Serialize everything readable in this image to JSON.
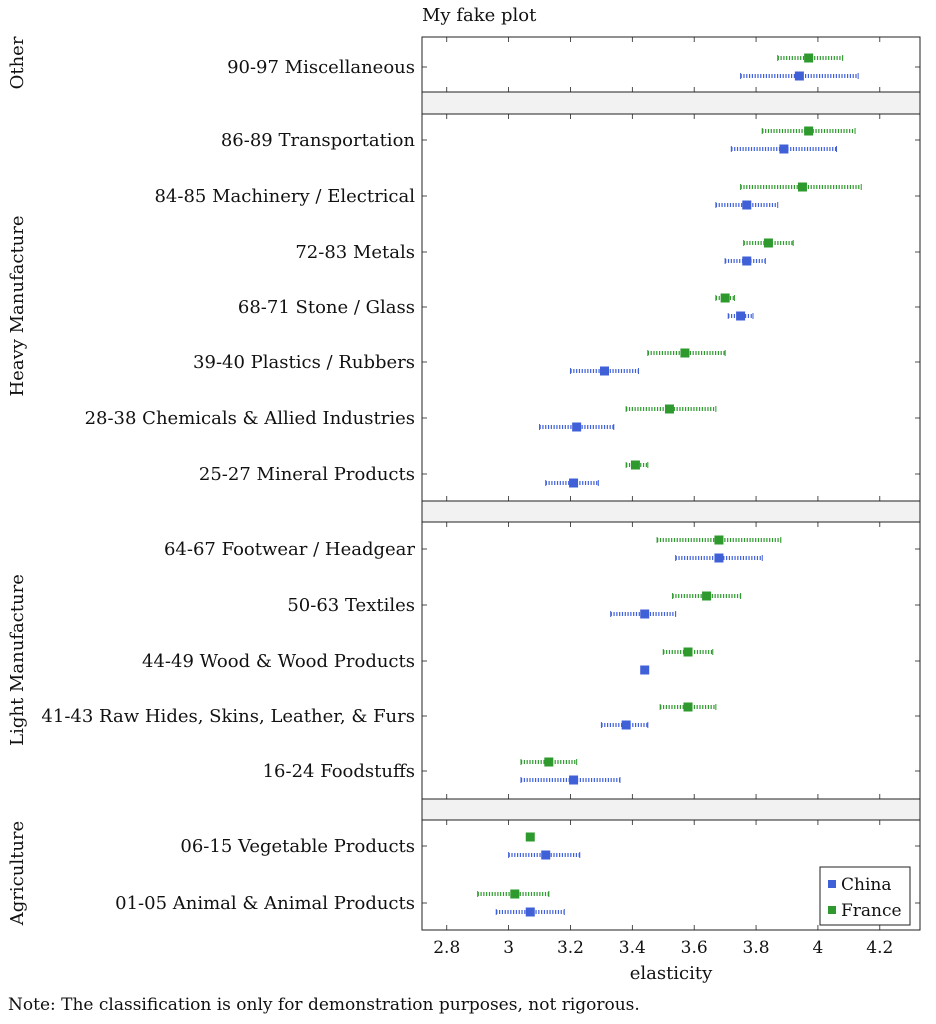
{
  "chart_data": {
    "type": "dot-range",
    "title": "My fake plot",
    "xlabel": "elasticity",
    "xlim": [
      2.72,
      4.33
    ],
    "xticks": [
      2.8,
      3.0,
      3.2,
      3.4,
      3.6,
      3.8,
      4.0,
      4.2
    ],
    "xtick_labels": [
      "2.8",
      "3",
      "3.2",
      "3.4",
      "3.6",
      "3.8",
      "4",
      "4.2"
    ],
    "colors": {
      "China": "#4060d8",
      "France": "#2e9a2e"
    },
    "legend": {
      "position": "bottom-right",
      "entries": [
        "China",
        "France"
      ]
    },
    "note": "Note: The classification is only for demonstration purposes, not rigorous.",
    "groups": [
      {
        "name": "Other",
        "items": [
          {
            "label": "90-97 Miscellaneous",
            "China": {
              "value": 3.94,
              "low": 3.75,
              "high": 4.13
            },
            "France": {
              "value": 3.97,
              "low": 3.87,
              "high": 4.08
            }
          }
        ]
      },
      {
        "name": "Heavy Manufacture",
        "items": [
          {
            "label": "86-89 Transportation",
            "China": {
              "value": 3.89,
              "low": 3.72,
              "high": 4.06
            },
            "France": {
              "value": 3.97,
              "low": 3.82,
              "high": 4.12
            }
          },
          {
            "label": "84-85 Machinery / Electrical",
            "China": {
              "value": 3.77,
              "low": 3.67,
              "high": 3.87
            },
            "France": {
              "value": 3.95,
              "low": 3.75,
              "high": 4.14
            }
          },
          {
            "label": "72-83 Metals",
            "China": {
              "value": 3.77,
              "low": 3.7,
              "high": 3.83
            },
            "France": {
              "value": 3.84,
              "low": 3.76,
              "high": 3.92
            }
          },
          {
            "label": "68-71 Stone / Glass",
            "China": {
              "value": 3.75,
              "low": 3.71,
              "high": 3.79
            },
            "France": {
              "value": 3.7,
              "low": 3.67,
              "high": 3.73
            }
          },
          {
            "label": "39-40 Plastics / Rubbers",
            "China": {
              "value": 3.31,
              "low": 3.2,
              "high": 3.42
            },
            "France": {
              "value": 3.57,
              "low": 3.45,
              "high": 3.7
            }
          },
          {
            "label": "28-38 Chemicals & Allied Industries",
            "China": {
              "value": 3.22,
              "low": 3.1,
              "high": 3.34
            },
            "France": {
              "value": 3.52,
              "low": 3.38,
              "high": 3.67
            }
          },
          {
            "label": "25-27 Mineral Products",
            "China": {
              "value": 3.21,
              "low": 3.12,
              "high": 3.29
            },
            "France": {
              "value": 3.41,
              "low": 3.38,
              "high": 3.45
            }
          }
        ]
      },
      {
        "name": "Light Manufacture",
        "items": [
          {
            "label": "64-67 Footwear / Headgear",
            "China": {
              "value": 3.68,
              "low": 3.54,
              "high": 3.82
            },
            "France": {
              "value": 3.68,
              "low": 3.48,
              "high": 3.88
            }
          },
          {
            "label": "50-63 Textiles",
            "China": {
              "value": 3.44,
              "low": 3.33,
              "high": 3.54
            },
            "France": {
              "value": 3.64,
              "low": 3.53,
              "high": 3.75
            }
          },
          {
            "label": "44-49 Wood & Wood Products",
            "China": {
              "value": 3.44,
              "low": 3.44,
              "high": 3.44
            },
            "France": {
              "value": 3.58,
              "low": 3.5,
              "high": 3.66
            }
          },
          {
            "label": "41-43 Raw Hides, Skins, Leather, & Furs",
            "China": {
              "value": 3.38,
              "low": 3.3,
              "high": 3.45
            },
            "France": {
              "value": 3.58,
              "low": 3.49,
              "high": 3.67
            }
          },
          {
            "label": "16-24 Foodstuffs",
            "China": {
              "value": 3.21,
              "low": 3.04,
              "high": 3.36
            },
            "France": {
              "value": 3.13,
              "low": 3.04,
              "high": 3.22
            }
          }
        ]
      },
      {
        "name": "Agriculture",
        "items": [
          {
            "label": "06-15 Vegetable Products",
            "China": {
              "value": 3.12,
              "low": 3.0,
              "high": 3.23
            },
            "France": {
              "value": 3.07,
              "low": 3.07,
              "high": 3.07
            }
          },
          {
            "label": "01-05 Animal & Animal Products",
            "China": {
              "value": 3.07,
              "low": 2.96,
              "high": 3.18
            },
            "France": {
              "value": 3.02,
              "low": 2.9,
              "high": 3.13
            }
          }
        ]
      }
    ]
  }
}
